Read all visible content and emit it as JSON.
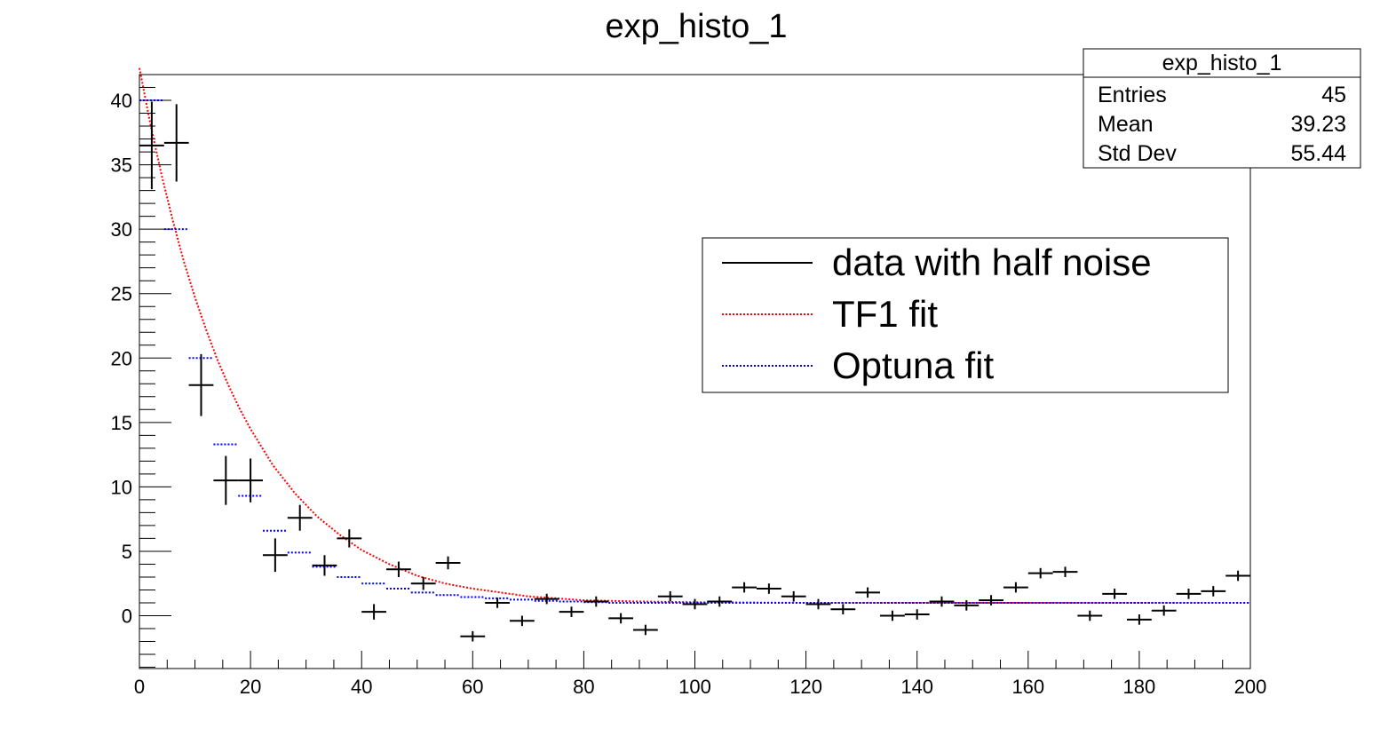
{
  "chart_data": {
    "type": "scatter",
    "title": "exp_histo_1",
    "xlabel": "",
    "ylabel": "",
    "xlim": [
      0,
      200
    ],
    "ylim": [
      -4.1,
      42
    ],
    "x_ticks": [
      0,
      20,
      40,
      60,
      80,
      100,
      120,
      140,
      160,
      180,
      200
    ],
    "y_ticks": [
      0,
      5,
      10,
      15,
      20,
      25,
      30,
      35,
      40
    ],
    "bin_width": 4.444,
    "grid": false,
    "stats_box": {
      "title": "exp_histo_1",
      "rows": [
        {
          "label": "Entries",
          "value": "45"
        },
        {
          "label": "Mean",
          "value": "39.23"
        },
        {
          "label": "Std Dev",
          "value": "55.44"
        }
      ]
    },
    "legend": {
      "placement": "right-center",
      "entries": [
        {
          "label": "data with half noise",
          "color": "#000000",
          "style": "solid"
        },
        {
          "label": "TF1 fit",
          "color": "#ff0000",
          "style": "dotted"
        },
        {
          "label": "Optuna fit",
          "color": "#0000ff",
          "style": "dotted"
        }
      ]
    },
    "series": [
      {
        "name": "data with half noise",
        "color": "#000000",
        "x": [
          2.22,
          6.67,
          11.11,
          15.56,
          20.0,
          24.44,
          28.89,
          33.33,
          37.78,
          42.22,
          46.67,
          51.11,
          55.56,
          60.0,
          64.44,
          68.89,
          73.33,
          77.78,
          82.22,
          86.67,
          91.11,
          95.56,
          100.0,
          104.44,
          108.89,
          113.33,
          117.78,
          122.22,
          126.67,
          131.11,
          135.56,
          140.0,
          144.44,
          148.89,
          153.33,
          157.78,
          162.22,
          166.67,
          171.11,
          175.56,
          180.0,
          184.44,
          188.89,
          193.33,
          197.78
        ],
        "values": [
          36.5,
          36.7,
          17.9,
          10.5,
          10.5,
          4.7,
          7.6,
          3.9,
          6.0,
          0.3,
          3.6,
          2.5,
          4.1,
          -1.6,
          1.0,
          -0.4,
          1.3,
          0.3,
          1.1,
          -0.2,
          -1.1,
          1.5,
          0.9,
          1.1,
          2.2,
          2.1,
          1.5,
          0.9,
          0.5,
          1.8,
          0.0,
          0.1,
          1.1,
          0.8,
          1.2,
          2.2,
          3.3,
          3.4,
          0.0,
          1.7,
          -0.3,
          0.4,
          1.7,
          1.9,
          3.1
        ],
        "errors": [
          3.4,
          3.0,
          2.4,
          1.9,
          1.7,
          1.3,
          1.0,
          0.8,
          0.7,
          0.6,
          0.6,
          0.5,
          0.5,
          0.4,
          0.4,
          0.4,
          0.4,
          0.4,
          0.4,
          0.4,
          0.4,
          0.4,
          0.4,
          0.4,
          0.4,
          0.4,
          0.4,
          0.4,
          0.4,
          0.4,
          0.4,
          0.4,
          0.4,
          0.4,
          0.4,
          0.4,
          0.4,
          0.4,
          0.4,
          0.4,
          0.4,
          0.4,
          0.4,
          0.4,
          0.4
        ]
      },
      {
        "name": "TF1 fit",
        "color": "#ff0000",
        "x": [
          0,
          2,
          4,
          6,
          8,
          10,
          12,
          14,
          16,
          18,
          20,
          24,
          28,
          32,
          36,
          40,
          45,
          50,
          55,
          60,
          70,
          80,
          90,
          100,
          120,
          140,
          160,
          180,
          200
        ],
        "values": [
          42.5,
          38.1,
          34.2,
          30.7,
          27.5,
          24.7,
          22.2,
          19.9,
          17.9,
          16.1,
          14.5,
          11.7,
          9.5,
          7.7,
          6.3,
          5.1,
          4.0,
          3.1,
          2.5,
          2.1,
          1.5,
          1.2,
          1.1,
          1.05,
          1.0,
          1.0,
          1.0,
          1.0,
          1.0
        ]
      },
      {
        "name": "Optuna fit",
        "color": "#0000ff",
        "x": [
          2.22,
          6.67,
          11.11,
          15.56,
          20.0,
          24.44,
          28.89,
          33.33,
          37.78,
          42.22,
          46.67,
          51.11,
          55.56,
          60.0,
          64.44,
          68.89,
          73.33,
          77.78,
          82.22,
          86.67,
          91.11,
          95.56,
          100.0,
          104.44,
          108.89,
          113.33,
          117.78,
          122.22,
          126.67,
          131.11,
          135.56,
          140.0,
          144.44,
          148.89,
          153.33,
          157.78,
          162.22,
          166.67,
          171.11,
          175.56,
          180.0,
          184.44,
          188.89,
          193.33,
          197.78
        ],
        "values": [
          40.0,
          30.0,
          20.0,
          13.3,
          9.3,
          6.6,
          4.9,
          3.8,
          3.0,
          2.5,
          2.1,
          1.8,
          1.6,
          1.45,
          1.35,
          1.25,
          1.15,
          1.1,
          1.05,
          1.0,
          1.0,
          1.0,
          1.0,
          1.0,
          1.0,
          1.0,
          1.0,
          1.0,
          1.0,
          1.0,
          1.0,
          1.0,
          1.0,
          1.0,
          1.0,
          1.0,
          1.0,
          1.0,
          1.0,
          1.0,
          1.0,
          1.0,
          1.0,
          1.0,
          1.0
        ]
      }
    ]
  }
}
